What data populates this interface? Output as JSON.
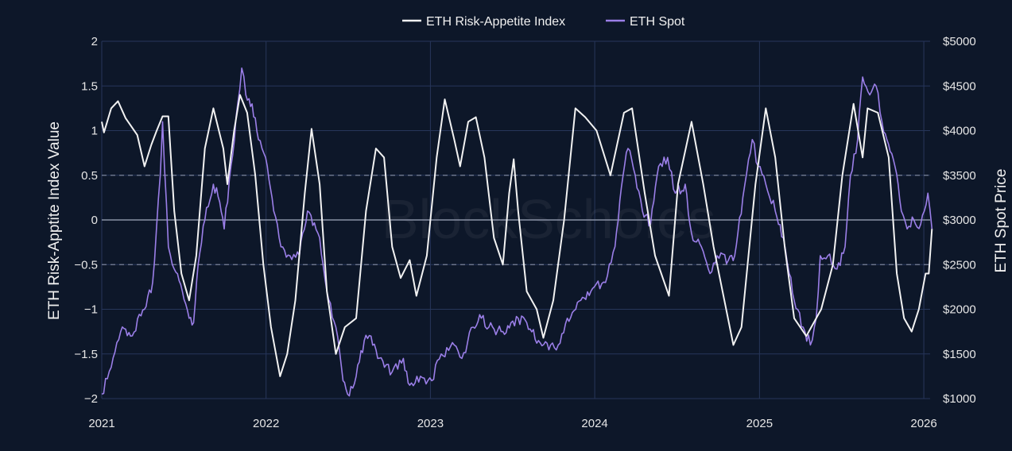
{
  "chart_data": {
    "type": "line",
    "watermark": "BlockScholes",
    "x_ticks": [
      "2021",
      "2022",
      "2023",
      "2024",
      "2025",
      "2026"
    ],
    "xlim": [
      "2021-01-01",
      "2026-01-15"
    ],
    "y_left": {
      "label": "ETH Risk-Apptite Index Value",
      "ticks": [
        "2",
        "1.5",
        "1",
        "0.5",
        "0",
        "−0.5",
        "−1",
        "−1.5",
        "−2"
      ],
      "lim": [
        -2,
        2
      ],
      "dashed_reference_lines": [
        0.5,
        -0.5
      ],
      "solid_reference_line": 0
    },
    "y_right": {
      "label": "ETH Spot Price",
      "ticks": [
        "$5000",
        "$4500",
        "$4000",
        "$3500",
        "$3000",
        "$2500",
        "$2000",
        "$1500",
        "$1000"
      ],
      "lim": [
        1000,
        5000
      ]
    },
    "colors": {
      "index": "#f2f2f2",
      "spot": "#9b7fe8",
      "background": "#0d1729",
      "grid": "#27365a"
    },
    "series": [
      {
        "name": "ETH Risk-Appetite Index",
        "axis": "left",
        "points": [
          [
            "2021-01-01",
            1.1
          ],
          [
            "2021-01-06",
            0.98
          ],
          [
            "2021-01-22",
            1.25
          ],
          [
            "2021-02-06",
            1.33
          ],
          [
            "2021-02-23",
            1.14
          ],
          [
            "2021-03-21",
            0.95
          ],
          [
            "2021-04-06",
            0.6
          ],
          [
            "2021-04-21",
            0.84
          ],
          [
            "2021-05-03",
            1.0
          ],
          [
            "2021-05-16",
            1.16
          ],
          [
            "2021-05-29",
            1.16
          ],
          [
            "2021-06-11",
            0.1
          ],
          [
            "2021-06-27",
            -0.6
          ],
          [
            "2021-07-14",
            -0.9
          ],
          [
            "2021-07-30",
            -0.4
          ],
          [
            "2021-08-18",
            0.8
          ],
          [
            "2021-09-06",
            1.25
          ],
          [
            "2021-09-28",
            0.8
          ],
          [
            "2021-10-07",
            0.4
          ],
          [
            "2021-10-22",
            1.0
          ],
          [
            "2021-11-04",
            1.4
          ],
          [
            "2021-11-20",
            1.2
          ],
          [
            "2021-12-08",
            0.5
          ],
          [
            "2021-12-26",
            -0.5
          ],
          [
            "2022-01-12",
            -1.2
          ],
          [
            "2022-02-01",
            -1.75
          ],
          [
            "2022-02-17",
            -1.5
          ],
          [
            "2022-03-07",
            -0.9
          ],
          [
            "2022-03-28",
            0.3
          ],
          [
            "2022-04-12",
            1.02
          ],
          [
            "2022-04-30",
            0.4
          ],
          [
            "2022-05-16",
            -0.8
          ],
          [
            "2022-06-05",
            -1.5
          ],
          [
            "2022-06-25",
            -1.2
          ],
          [
            "2022-07-20",
            -1.1
          ],
          [
            "2022-08-11",
            0.1
          ],
          [
            "2022-09-02",
            0.8
          ],
          [
            "2022-09-20",
            0.7
          ],
          [
            "2022-10-08",
            -0.3
          ],
          [
            "2022-10-27",
            -0.65
          ],
          [
            "2022-11-16",
            -0.45
          ],
          [
            "2022-12-01",
            -0.85
          ],
          [
            "2022-12-24",
            -0.4
          ],
          [
            "2023-01-15",
            0.7
          ],
          [
            "2023-02-02",
            1.35
          ],
          [
            "2023-02-23",
            0.9
          ],
          [
            "2023-03-08",
            0.6
          ],
          [
            "2023-03-26",
            1.1
          ],
          [
            "2023-04-12",
            1.15
          ],
          [
            "2023-05-01",
            0.7
          ],
          [
            "2023-05-22",
            -0.2
          ],
          [
            "2023-06-11",
            -0.5
          ],
          [
            "2023-06-25",
            0.3
          ],
          [
            "2023-07-05",
            0.68
          ],
          [
            "2023-07-15",
            0.1
          ],
          [
            "2023-08-03",
            -0.8
          ],
          [
            "2023-08-25",
            -1.0
          ],
          [
            "2023-09-09",
            -1.32
          ],
          [
            "2023-10-01",
            -0.9
          ],
          [
            "2023-10-25",
            0.0
          ],
          [
            "2023-11-19",
            1.25
          ],
          [
            "2023-12-11",
            1.15
          ],
          [
            "2024-01-05",
            1.0
          ],
          [
            "2024-02-05",
            0.5
          ],
          [
            "2024-03-06",
            1.2
          ],
          [
            "2024-03-24",
            1.25
          ],
          [
            "2024-04-21",
            0.3
          ],
          [
            "2024-05-14",
            -0.4
          ],
          [
            "2024-06-14",
            -0.85
          ],
          [
            "2024-07-04",
            0.4
          ],
          [
            "2024-08-03",
            1.1
          ],
          [
            "2024-08-29",
            0.4
          ],
          [
            "2024-09-21",
            -0.3
          ],
          [
            "2024-10-15",
            -0.9
          ],
          [
            "2024-11-04",
            -1.4
          ],
          [
            "2024-11-22",
            -1.2
          ],
          [
            "2024-12-23",
            0.4
          ],
          [
            "2025-01-15",
            1.25
          ],
          [
            "2025-02-05",
            0.7
          ],
          [
            "2025-02-26",
            -0.3
          ],
          [
            "2025-03-19",
            -1.1
          ],
          [
            "2025-04-15",
            -1.3
          ],
          [
            "2025-05-18",
            -1.0
          ],
          [
            "2025-06-13",
            -0.5
          ],
          [
            "2025-07-04",
            0.5
          ],
          [
            "2025-07-29",
            1.3
          ],
          [
            "2025-08-18",
            0.7
          ],
          [
            "2025-08-29",
            1.25
          ],
          [
            "2025-09-21",
            1.2
          ],
          [
            "2025-10-15",
            0.7
          ],
          [
            "2025-11-02",
            -0.6
          ],
          [
            "2025-11-18",
            -1.1
          ],
          [
            "2025-12-05",
            -1.25
          ],
          [
            "2025-12-21",
            -1.0
          ],
          [
            "2026-01-05",
            -0.6
          ],
          [
            "2026-01-12",
            -0.6
          ],
          [
            "2026-01-19",
            -0.1
          ]
        ]
      },
      {
        "name": "ETH Spot",
        "axis": "right",
        "points": [
          [
            "2021-01-01",
            1050
          ],
          [
            "2021-01-22",
            1350
          ],
          [
            "2021-02-12",
            1750
          ],
          [
            "2021-03-06",
            1700
          ],
          [
            "2021-04-06",
            2000
          ],
          [
            "2021-04-24",
            2300
          ],
          [
            "2021-05-11",
            3500
          ],
          [
            "2021-05-16",
            4100
          ],
          [
            "2021-05-29",
            2700
          ],
          [
            "2021-06-11",
            2450
          ],
          [
            "2021-06-29",
            2200
          ],
          [
            "2021-07-14",
            1900
          ],
          [
            "2021-07-24",
            1850
          ],
          [
            "2021-08-03",
            2500
          ],
          [
            "2021-08-18",
            3000
          ],
          [
            "2021-09-06",
            3400
          ],
          [
            "2021-09-20",
            3200
          ],
          [
            "2021-09-30",
            2900
          ],
          [
            "2021-10-15",
            3600
          ],
          [
            "2021-10-30",
            4300
          ],
          [
            "2021-11-08",
            4700
          ],
          [
            "2021-11-17",
            4400
          ],
          [
            "2021-12-01",
            4300
          ],
          [
            "2021-12-15",
            3900
          ],
          [
            "2021-12-31",
            3700
          ],
          [
            "2022-01-18",
            3100
          ],
          [
            "2022-02-03",
            2700
          ],
          [
            "2022-02-23",
            2600
          ],
          [
            "2022-03-16",
            2600
          ],
          [
            "2022-04-03",
            3100
          ],
          [
            "2022-04-30",
            2800
          ],
          [
            "2022-05-16",
            2200
          ],
          [
            "2022-06-05",
            1800
          ],
          [
            "2022-06-21",
            1200
          ],
          [
            "2022-07-01",
            1050
          ],
          [
            "2022-07-20",
            1250
          ],
          [
            "2022-08-07",
            1650
          ],
          [
            "2022-08-22",
            1700
          ],
          [
            "2022-09-06",
            1450
          ],
          [
            "2022-09-21",
            1350
          ],
          [
            "2022-10-08",
            1300
          ],
          [
            "2022-11-02",
            1450
          ],
          [
            "2022-11-16",
            1150
          ],
          [
            "2022-12-10",
            1250
          ],
          [
            "2023-01-04",
            1200
          ],
          [
            "2023-01-25",
            1500
          ],
          [
            "2023-02-23",
            1600
          ],
          [
            "2023-03-12",
            1450
          ],
          [
            "2023-04-06",
            1800
          ],
          [
            "2023-04-24",
            1900
          ],
          [
            "2023-05-11",
            1800
          ],
          [
            "2023-06-11",
            1750
          ],
          [
            "2023-06-29",
            1850
          ],
          [
            "2023-07-15",
            1900
          ],
          [
            "2023-08-03",
            1850
          ],
          [
            "2023-08-29",
            1650
          ],
          [
            "2023-09-25",
            1600
          ],
          [
            "2023-10-12",
            1600
          ],
          [
            "2023-11-01",
            1900
          ],
          [
            "2023-12-01",
            2100
          ],
          [
            "2023-12-31",
            2250
          ],
          [
            "2024-01-25",
            2300
          ],
          [
            "2024-02-15",
            2700
          ],
          [
            "2024-03-04",
            3500
          ],
          [
            "2024-03-15",
            3800
          ],
          [
            "2024-03-31",
            3500
          ],
          [
            "2024-04-16",
            3100
          ],
          [
            "2024-05-04",
            2950
          ],
          [
            "2024-05-22",
            3600
          ],
          [
            "2024-06-11",
            3700
          ],
          [
            "2024-06-28",
            3300
          ],
          [
            "2024-07-20",
            3400
          ],
          [
            "2024-08-03",
            2850
          ],
          [
            "2024-08-25",
            2700
          ],
          [
            "2024-09-13",
            2400
          ],
          [
            "2024-09-29",
            2600
          ],
          [
            "2024-10-24",
            2550
          ],
          [
            "2024-11-07",
            2600
          ],
          [
            "2024-11-25",
            3250
          ],
          [
            "2024-12-16",
            3900
          ],
          [
            "2024-12-29",
            3600
          ],
          [
            "2025-01-15",
            3400
          ],
          [
            "2025-02-05",
            3100
          ],
          [
            "2025-02-23",
            2800
          ],
          [
            "2025-03-08",
            2400
          ],
          [
            "2025-03-19",
            2100
          ],
          [
            "2025-04-08",
            1800
          ],
          [
            "2025-04-24",
            1600
          ],
          [
            "2025-05-07",
            1900
          ],
          [
            "2025-05-16",
            2600
          ],
          [
            "2025-06-02",
            2600
          ],
          [
            "2025-06-22",
            2450
          ],
          [
            "2025-07-10",
            2700
          ],
          [
            "2025-07-22",
            3500
          ],
          [
            "2025-08-07",
            3900
          ],
          [
            "2025-08-18",
            4600
          ],
          [
            "2025-09-03",
            4400
          ],
          [
            "2025-09-17",
            4500
          ],
          [
            "2025-09-30",
            4100
          ],
          [
            "2025-10-11",
            3900
          ],
          [
            "2025-10-29",
            3600
          ],
          [
            "2025-11-12",
            3100
          ],
          [
            "2025-11-25",
            2900
          ],
          [
            "2025-12-10",
            3000
          ],
          [
            "2025-12-25",
            2950
          ],
          [
            "2026-01-10",
            3300
          ],
          [
            "2026-01-19",
            2900
          ]
        ]
      }
    ]
  }
}
